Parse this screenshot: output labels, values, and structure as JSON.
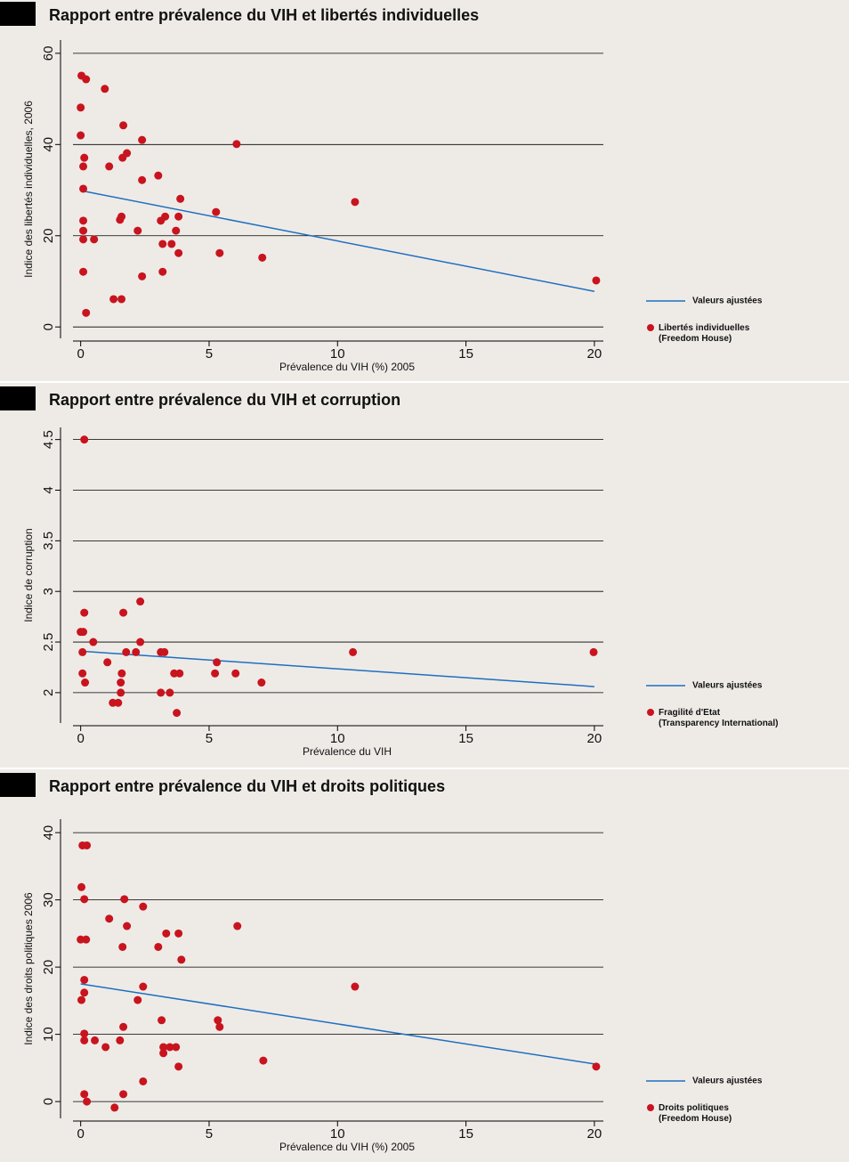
{
  "chart_data": [
    {
      "type": "scatter",
      "title": "Rapport entre prévalence du VIH et libertés individuelles",
      "x_label": "Prévalence du VIH (%) 2005",
      "y_label": "Indice des libertés individuelles, 2006",
      "xlim": [
        -0.3,
        20.35
      ],
      "xticks": [
        0,
        5,
        10,
        15,
        20
      ],
      "ylim": [
        -2.5,
        62.9
      ],
      "yticks": [
        0,
        20,
        40,
        60
      ],
      "grid": true,
      "series": [
        {
          "name": "Valeurs ajustées",
          "type": "line",
          "color": "#1f6fbf",
          "x": [
            0,
            20
          ],
          "values": [
            29.9,
            7.8
          ]
        },
        {
          "name": "Libertés individuelles (Freedom House)",
          "type": "scatter",
          "color": "#c8141e",
          "x": [
            0.03,
            0.21,
            0.94,
            0,
            0,
            1.66,
            2.39,
            6.07,
            0.14,
            1.8,
            1.63,
            0.1,
            1.11,
            3.02,
            2.39,
            0.1,
            3.88,
            10.68,
            5.27,
            1.59,
            3.29,
            3.81,
            0.1,
            1.53,
            3.12,
            2.22,
            3.71,
            0.1,
            0.1,
            0.52,
            3.19,
            3.54,
            3.81,
            5.41,
            7.07,
            0.1,
            3.19,
            2.39,
            20.07,
            1.28,
            1.59,
            0.21
          ],
          "values": [
            55.1,
            54.3,
            52.2,
            48.1,
            42,
            44.2,
            41,
            40.1,
            37.1,
            38.1,
            37.1,
            35.2,
            35.2,
            33.2,
            32.2,
            30.3,
            28.1,
            27.4,
            25.2,
            24.2,
            24.2,
            24.2,
            23.3,
            23.5,
            23.3,
            21.1,
            21.1,
            21.1,
            19.2,
            19.2,
            18.2,
            18.2,
            16.2,
            16.2,
            15.2,
            12.1,
            12.1,
            11.1,
            10.2,
            6.1,
            6.1,
            3.1
          ]
        }
      ]
    },
    {
      "type": "scatter",
      "title": "Rapport entre prévalence du VIH et corruption",
      "x_label": "Prévalence du VIH",
      "y_label": "Indice de corruption",
      "xlim": [
        -0.3,
        20.35
      ],
      "xticks": [
        0,
        5,
        10,
        15,
        20
      ],
      "ylim": [
        1.7,
        4.62
      ],
      "yticks": [
        2,
        2.5,
        3,
        3.5,
        4,
        4.5
      ],
      "grid": true,
      "series": [
        {
          "name": "Valeurs ajustées",
          "type": "line",
          "color": "#1f6fbf",
          "x": [
            0,
            20
          ],
          "values": [
            2.41,
            2.06
          ]
        },
        {
          "name": "Fragilité d'Etat (Transparency International)",
          "type": "scatter",
          "color": "#c8141e",
          "x": [
            0.14,
            0.14,
            1.66,
            2.32,
            0,
            0.1,
            0.49,
            2.32,
            0.07,
            1.77,
            2.15,
            3.12,
            3.26,
            10.6,
            19.97,
            1.04,
            5.3,
            0.07,
            1.6,
            3.64,
            3.85,
            5.23,
            6.03,
            0.17,
            1.56,
            7.04,
            1.56,
            3.12,
            3.47,
            1.25,
            1.46,
            3.74
          ],
          "values": [
            4.5,
            2.79,
            2.79,
            2.9,
            2.6,
            2.6,
            2.5,
            2.5,
            2.4,
            2.4,
            2.4,
            2.4,
            2.4,
            2.4,
            2.4,
            2.3,
            2.3,
            2.19,
            2.19,
            2.19,
            2.19,
            2.19,
            2.19,
            2.1,
            2.1,
            2.1,
            2,
            2,
            2,
            1.9,
            1.9,
            1.8
          ]
        }
      ]
    },
    {
      "type": "scatter",
      "title": "Rapport entre prévalence du VIH et droits politiques",
      "x_label": "Prévalence du VIH (%)  2005",
      "y_label": "Indice des droits politiques 2006",
      "xlim": [
        -0.3,
        20.35
      ],
      "xticks": [
        0,
        5,
        10,
        15,
        20
      ],
      "ylim": [
        -2.5,
        42
      ],
      "yticks": [
        0,
        10,
        20,
        30,
        40
      ],
      "grid": true,
      "series": [
        {
          "name": "Valeurs ajustées",
          "type": "line",
          "color": "#1f6fbf",
          "x": [
            0,
            20
          ],
          "values": [
            17.5,
            5.6
          ]
        },
        {
          "name": "Droits politiques (Freedom House)",
          "type": "scatter",
          "color": "#c8141e",
          "x": [
            0.07,
            0.24,
            0.03,
            0.14,
            1.7,
            2.43,
            1.11,
            1.8,
            6.1,
            3.33,
            3.81,
            0,
            0.21,
            1.63,
            3.02,
            3.92,
            0.14,
            2.43,
            10.68,
            0.14,
            0.03,
            2.22,
            3.15,
            5.34,
            5.41,
            1.66,
            0.14,
            0.14,
            0.55,
            1.53,
            3.22,
            3.47,
            3.71,
            0.97,
            3.22,
            7.11,
            3.81,
            2.43,
            20.07,
            0.14,
            1.66,
            0.24,
            1.32
          ],
          "values": [
            38.1,
            38.1,
            31.9,
            30.1,
            30.1,
            29,
            27.2,
            26.1,
            26.1,
            25,
            25,
            24.1,
            24.1,
            23,
            23,
            21.1,
            18.1,
            17.1,
            17.1,
            16.2,
            15.1,
            15.1,
            12.1,
            12.1,
            11.1,
            11.1,
            10.1,
            9.1,
            9.1,
            9.1,
            8.1,
            8.1,
            8.1,
            8.1,
            7.2,
            6.1,
            5.2,
            3,
            5.2,
            1.1,
            1.1,
            0,
            -0.9
          ]
        }
      ]
    }
  ]
}
